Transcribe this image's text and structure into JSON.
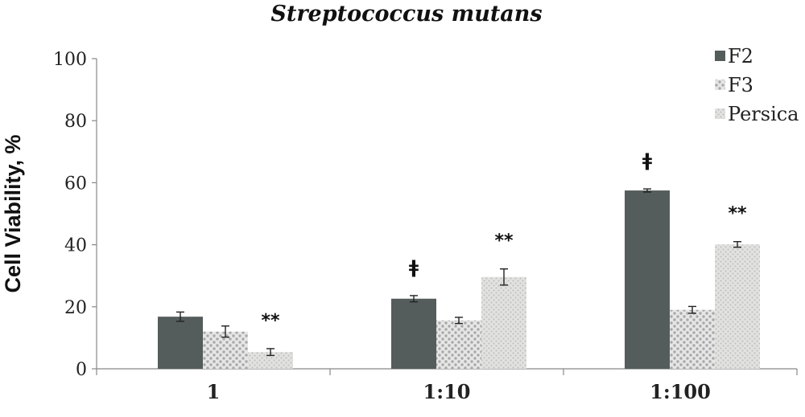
{
  "chart_data": {
    "type": "bar",
    "title": "Streptococcus mutans",
    "xlabel": "",
    "ylabel": "Cell Viability, %",
    "ylim": [
      0,
      100
    ],
    "yticks": [
      0,
      20,
      40,
      60,
      80,
      100
    ],
    "categories": [
      "1",
      "1:10",
      "1:100"
    ],
    "series": [
      {
        "name": "F2",
        "values": [
          16.8,
          22.6,
          57.5
        ],
        "errors": [
          1.5,
          1.0,
          0.5
        ]
      },
      {
        "name": "F3",
        "values": [
          12.0,
          15.6,
          19.0
        ],
        "errors": [
          1.8,
          1.0,
          1.1
        ]
      },
      {
        "name": "Persica",
        "values": [
          5.4,
          29.6,
          40.1
        ],
        "errors": [
          1.1,
          2.6,
          0.9
        ]
      }
    ],
    "annotations": [
      {
        "category": "1",
        "series": "Persica",
        "text": "**"
      },
      {
        "category": "1:10",
        "series": "F2",
        "text": "ǂ"
      },
      {
        "category": "1:10",
        "series": "Persica",
        "text": "**"
      },
      {
        "category": "1:100",
        "series": "F2",
        "text": "ǂ"
      },
      {
        "category": "1:100",
        "series": "Persica",
        "text": "**"
      }
    ],
    "legend_position": "top-right",
    "grid": false
  },
  "colors": {
    "F2": "#555c5c",
    "F3": "#c9c9c9",
    "Persica": "#d4d4d2",
    "axis": "#888888"
  }
}
